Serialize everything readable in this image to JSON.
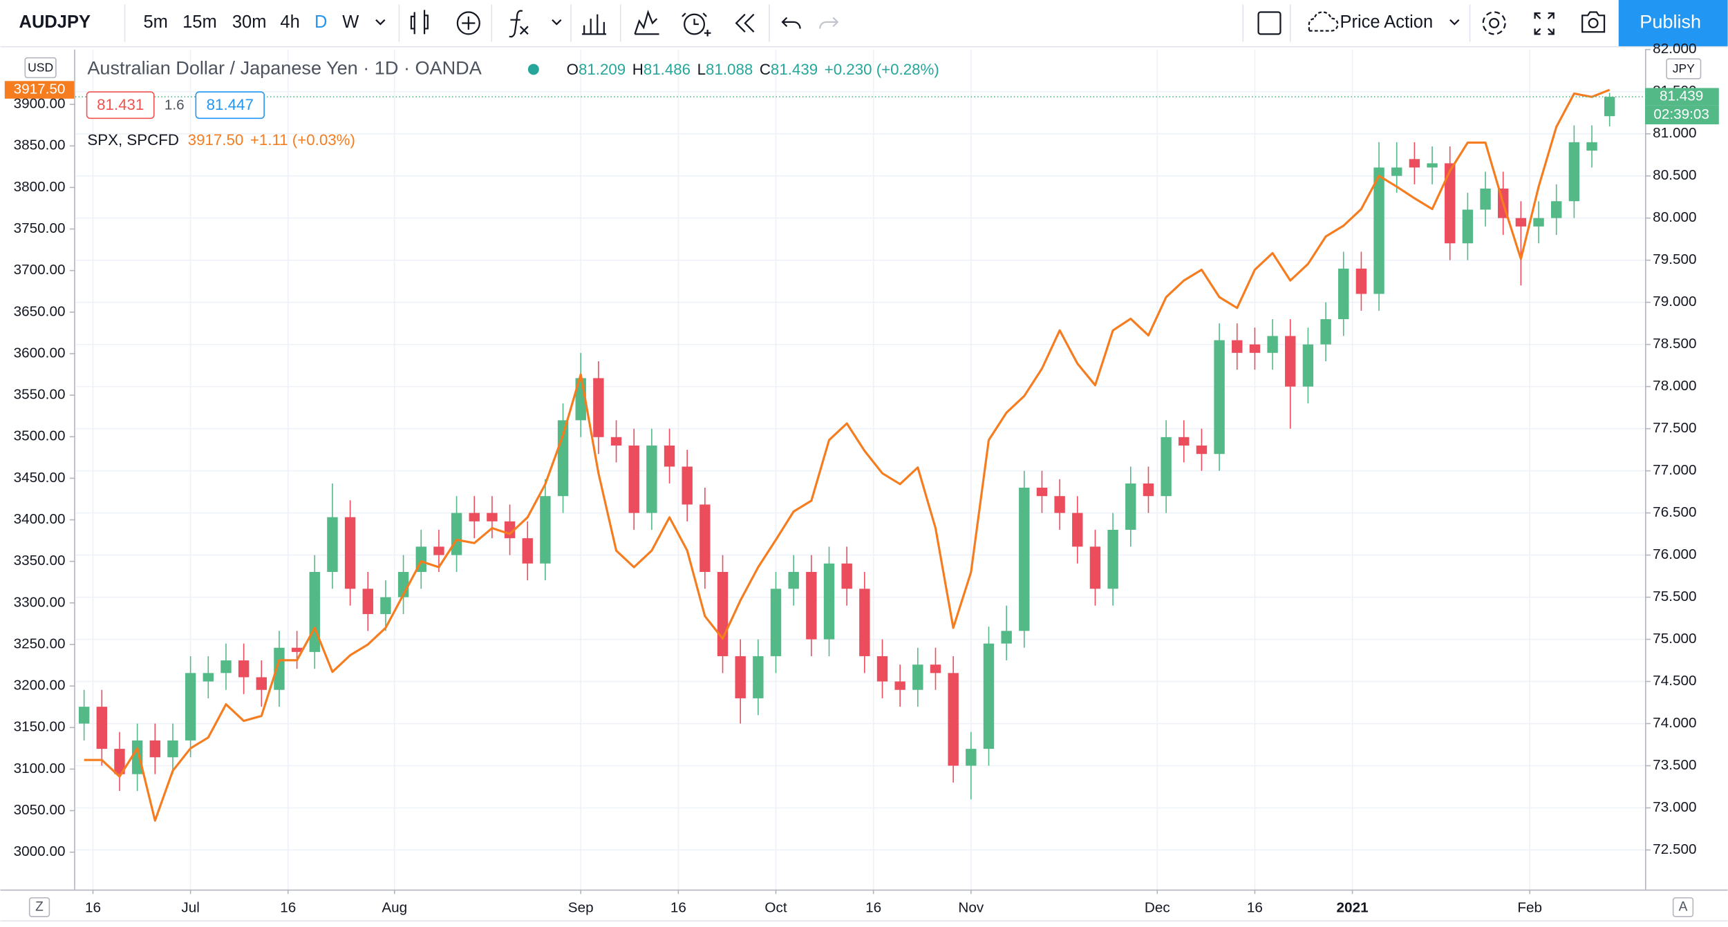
{
  "toolbar": {
    "symbol": "AUDJPY",
    "intervals": [
      "5m",
      "15m",
      "30m",
      "4h",
      "D",
      "W"
    ],
    "template": "Price Action",
    "publish": "Publish"
  },
  "legend": {
    "title": "Australian Dollar / Japanese Yen · 1D · OANDA",
    "open_label": "O",
    "high_label": "H",
    "low_label": "L",
    "close_label": "C",
    "change": "+0.230 (+0.28%)",
    "bid": "81.431",
    "spread": "1.6",
    "ask": "81.447"
  },
  "spx_legend": {
    "last": "3917.50",
    "change": "+1.11 (+0.03%)"
  },
  "axis_badges": {
    "left_currency": "USD",
    "right_currency": "JPY",
    "countdown": "02:39:03"
  },
  "bottom_bar": {
    "left": "Z",
    "right": "A"
  },
  "chart_data": {
    "type": "candlestick",
    "up_color": "#53b987",
    "down_color": "#eb4d5c",
    "grid": true,
    "xlim": [
      -1,
      176
    ],
    "xticks": [
      {
        "value": 1,
        "label": "16"
      },
      {
        "value": 12,
        "label": "Jul"
      },
      {
        "value": 23,
        "label": "16"
      },
      {
        "value": 35,
        "label": "Aug"
      },
      {
        "value": 56,
        "label": "Sep"
      },
      {
        "value": 67,
        "label": "16"
      },
      {
        "value": 78,
        "label": "Oct"
      },
      {
        "value": 89,
        "label": "16"
      },
      {
        "value": 100,
        "label": "Nov"
      },
      {
        "value": 121,
        "label": "Dec"
      },
      {
        "value": 132,
        "label": "16"
      },
      {
        "value": 143,
        "label": "2021"
      },
      {
        "value": 163,
        "label": "Feb"
      }
    ],
    "ylim": [
      72.03,
      82.0
    ],
    "yticks": [
      {
        "value": 72.5,
        "label": "72.500"
      },
      {
        "value": 73,
        "label": "73.000"
      },
      {
        "value": 73.5,
        "label": "73.500"
      },
      {
        "value": 74,
        "label": "74.000"
      },
      {
        "value": 74.5,
        "label": "74.500"
      },
      {
        "value": 75,
        "label": "75.000"
      },
      {
        "value": 75.5,
        "label": "75.500"
      },
      {
        "value": 76,
        "label": "76.000"
      },
      {
        "value": 76.5,
        "label": "76.500"
      },
      {
        "value": 77,
        "label": "77.000"
      },
      {
        "value": 77.5,
        "label": "77.500"
      },
      {
        "value": 78,
        "label": "78.000"
      },
      {
        "value": 78.5,
        "label": "78.500"
      },
      {
        "value": 79,
        "label": "79.000"
      },
      {
        "value": 79.5,
        "label": "79.500"
      },
      {
        "value": 80,
        "label": "80.000"
      },
      {
        "value": 80.5,
        "label": "80.500"
      },
      {
        "value": 81,
        "label": "81.000"
      },
      {
        "value": 81.5,
        "label": "81.500"
      },
      {
        "value": 82,
        "label": "82.000"
      }
    ],
    "y2lim": [
      2955,
      3966
    ],
    "y2ticks": [
      {
        "value": 3000,
        "label": "3000.00"
      },
      {
        "value": 3050,
        "label": "3050.00"
      },
      {
        "value": 3100,
        "label": "3100.00"
      },
      {
        "value": 3150,
        "label": "3150.00"
      },
      {
        "value": 3200,
        "label": "3200.00"
      },
      {
        "value": 3250,
        "label": "3250.00"
      },
      {
        "value": 3300,
        "label": "3300.00"
      },
      {
        "value": 3350,
        "label": "3350.00"
      },
      {
        "value": 3400,
        "label": "3400.00"
      },
      {
        "value": 3450,
        "label": "3450.00"
      },
      {
        "value": 3500,
        "label": "3500.00"
      },
      {
        "value": 3550,
        "label": "3550.00"
      },
      {
        "value": 3600,
        "label": "3600.00"
      },
      {
        "value": 3650,
        "label": "3650.00"
      },
      {
        "value": 3700,
        "label": "3700.00"
      },
      {
        "value": 3750,
        "label": "3750.00"
      },
      {
        "value": 3800,
        "label": "3800.00"
      },
      {
        "value": 3850,
        "label": "3850.00"
      },
      {
        "value": 3900,
        "label": "3900.00"
      }
    ],
    "x": [
      0,
      2,
      4,
      6,
      8,
      10,
      12,
      14,
      16,
      18,
      20,
      22,
      24,
      26,
      28,
      30,
      32,
      34,
      36,
      38,
      40,
      42,
      44,
      46,
      48,
      50,
      52,
      54,
      56,
      58,
      60,
      62,
      64,
      66,
      68,
      70,
      72,
      74,
      76,
      78,
      80,
      82,
      84,
      86,
      88,
      90,
      92,
      94,
      96,
      98,
      100,
      102,
      104,
      106,
      108,
      110,
      112,
      114,
      116,
      118,
      120,
      122,
      124,
      126,
      128,
      130,
      132,
      134,
      136,
      138,
      140,
      142,
      144,
      146,
      148,
      150,
      152,
      154,
      156,
      158,
      160,
      162,
      164,
      166,
      168,
      170,
      172
    ],
    "open": [
      74.0,
      74.2,
      73.7,
      73.4,
      73.8,
      73.6,
      73.8,
      74.5,
      74.6,
      74.75,
      74.55,
      74.4,
      74.9,
      74.85,
      75.8,
      76.45,
      75.6,
      75.3,
      75.5,
      75.8,
      76.1,
      76.0,
      76.5,
      76.5,
      76.4,
      76.2,
      75.9,
      76.7,
      77.6,
      78.1,
      77.4,
      77.3,
      76.5,
      77.3,
      77.05,
      76.6,
      75.8,
      74.8,
      74.3,
      74.8,
      75.6,
      75.8,
      75.0,
      75.9,
      75.6,
      74.8,
      74.5,
      74.4,
      74.7,
      74.6,
      73.5,
      73.7,
      74.95,
      75.1,
      76.8,
      76.7,
      76.5,
      76.1,
      75.6,
      76.3,
      76.85,
      76.7,
      77.4,
      77.3,
      77.2,
      78.55,
      78.5,
      78.4,
      78.6,
      78.0,
      78.5,
      78.8,
      79.4,
      79.1,
      80.5,
      80.7,
      80.6,
      80.65,
      79.7,
      80.1,
      80.35,
      80.0,
      79.9,
      80.0,
      80.2,
      80.8,
      81.209
    ],
    "high": [
      74.4,
      74.4,
      73.9,
      74.0,
      74.0,
      74.0,
      74.8,
      74.8,
      74.95,
      74.95,
      74.75,
      75.1,
      75.1,
      76.0,
      76.85,
      76.65,
      75.8,
      75.7,
      76.0,
      76.3,
      76.3,
      76.7,
      76.7,
      76.7,
      76.6,
      76.4,
      76.9,
      77.8,
      78.4,
      78.3,
      77.6,
      77.5,
      77.5,
      77.5,
      77.25,
      76.8,
      76.0,
      75.0,
      75.0,
      75.8,
      76.0,
      76.0,
      76.1,
      76.1,
      75.8,
      75.0,
      74.7,
      74.9,
      74.9,
      74.8,
      73.9,
      75.15,
      75.4,
      77.0,
      77.0,
      76.9,
      76.7,
      76.3,
      76.5,
      77.05,
      77.05,
      77.6,
      77.6,
      77.5,
      78.75,
      78.75,
      78.7,
      78.8,
      78.8,
      78.7,
      79.0,
      79.6,
      79.6,
      80.9,
      80.9,
      80.9,
      80.85,
      80.85,
      80.3,
      80.55,
      80.55,
      80.2,
      80.2,
      80.4,
      81.1,
      81.1,
      81.486
    ],
    "low": [
      73.8,
      73.5,
      73.2,
      73.2,
      73.4,
      73.4,
      73.6,
      74.3,
      74.4,
      74.35,
      74.2,
      74.2,
      74.65,
      74.65,
      75.6,
      75.4,
      75.1,
      75.1,
      75.3,
      75.6,
      75.8,
      75.8,
      76.2,
      76.2,
      76.0,
      75.7,
      75.7,
      76.5,
      77.4,
      77.2,
      77.1,
      76.3,
      76.3,
      76.85,
      76.4,
      75.6,
      74.6,
      74.0,
      74.1,
      74.6,
      75.4,
      74.8,
      74.8,
      75.4,
      74.6,
      74.3,
      74.2,
      74.2,
      74.4,
      73.3,
      73.1,
      73.5,
      74.75,
      74.9,
      76.5,
      76.3,
      75.9,
      75.4,
      75.4,
      76.1,
      76.5,
      76.5,
      77.1,
      77.0,
      77.0,
      78.2,
      78.2,
      78.2,
      77.5,
      77.8,
      78.3,
      78.6,
      78.9,
      78.9,
      80.3,
      80.4,
      80.4,
      79.5,
      79.5,
      79.9,
      79.8,
      79.2,
      79.7,
      79.8,
      80.0,
      80.6,
      81.088
    ],
    "close": [
      74.2,
      73.7,
      73.4,
      73.8,
      73.6,
      73.8,
      74.6,
      74.6,
      74.75,
      74.55,
      74.4,
      74.9,
      74.85,
      75.8,
      76.45,
      75.6,
      75.3,
      75.5,
      75.8,
      76.1,
      76.0,
      76.5,
      76.4,
      76.4,
      76.2,
      75.9,
      76.7,
      77.6,
      78.1,
      77.4,
      77.3,
      76.5,
      77.3,
      77.05,
      76.6,
      75.8,
      74.8,
      74.3,
      74.8,
      75.6,
      75.8,
      75.0,
      75.9,
      75.6,
      74.8,
      74.5,
      74.4,
      74.7,
      74.6,
      73.5,
      73.7,
      74.95,
      75.1,
      76.8,
      76.7,
      76.5,
      76.1,
      75.6,
      76.3,
      76.85,
      76.7,
      77.4,
      77.3,
      77.2,
      78.55,
      78.4,
      78.4,
      78.6,
      78.0,
      78.5,
      78.8,
      79.4,
      79.1,
      80.6,
      80.6,
      80.6,
      80.65,
      79.7,
      80.1,
      80.35,
      80.0,
      79.9,
      80.0,
      80.2,
      80.9,
      80.9,
      81.439
    ],
    "series": [
      {
        "name": "SPX, SPCFD",
        "color": "#f57c1f",
        "axis": "y2",
        "values": [
          3111,
          3111,
          3091,
          3125,
          3038,
          3098,
          3125,
          3138,
          3178,
          3158,
          3164,
          3231,
          3231,
          3270,
          3217,
          3237,
          3250,
          3270,
          3310,
          3350,
          3343,
          3376,
          3372,
          3390,
          3383,
          3403,
          3443,
          3502,
          3575,
          3456,
          3363,
          3343,
          3363,
          3403,
          3363,
          3284,
          3257,
          3303,
          3343,
          3376,
          3410,
          3423,
          3496,
          3516,
          3483,
          3456,
          3443,
          3463,
          3390,
          3270,
          3337,
          3496,
          3529,
          3549,
          3582,
          3628,
          3588,
          3562,
          3628,
          3642,
          3622,
          3668,
          3688,
          3701,
          3668,
          3655,
          3701,
          3721,
          3688,
          3708,
          3741,
          3754,
          3774,
          3814,
          3801,
          3787,
          3774,
          3820,
          3854,
          3854,
          3781,
          3714,
          3801,
          3873,
          3913,
          3909,
          3917.5
        ]
      }
    ]
  }
}
